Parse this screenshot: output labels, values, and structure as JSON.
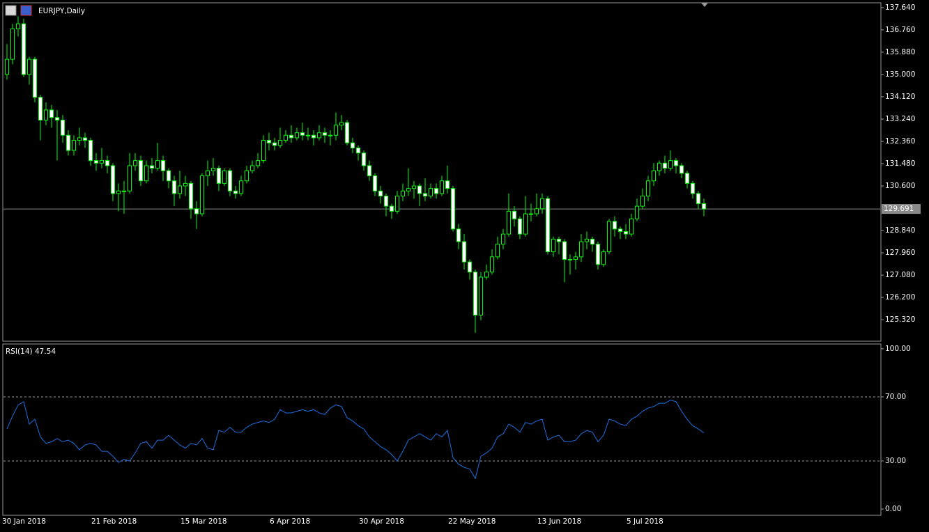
{
  "chart_data": [
    {
      "type": "candlestick",
      "title": "EURJPY,Daily",
      "categories": [
        "30 Jan 2018",
        null,
        null,
        null,
        null,
        null,
        null,
        null,
        null,
        null,
        null,
        null,
        null,
        null,
        null,
        null,
        "21 Feb 2018",
        null,
        null,
        null,
        null,
        null,
        null,
        null,
        null,
        null,
        null,
        null,
        null,
        null,
        null,
        null,
        "15 Mar 2018",
        null,
        null,
        null,
        null,
        null,
        null,
        null,
        null,
        null,
        null,
        null,
        null,
        null,
        null,
        null,
        "6 Apr 2018",
        null,
        null,
        null,
        null,
        null,
        null,
        null,
        null,
        null,
        null,
        null,
        null,
        null,
        null,
        null,
        "30 Apr 2018",
        null,
        null,
        null,
        null,
        null,
        null,
        null,
        null,
        null,
        null,
        null,
        null,
        null,
        null,
        null,
        "22 May 2018",
        null,
        null,
        null,
        null,
        null,
        null,
        null,
        null,
        null,
        null,
        null,
        null,
        null,
        null,
        null,
        "13 Jun 2018",
        null,
        null,
        null,
        null,
        null,
        null,
        null,
        null,
        null,
        null,
        null,
        null,
        null,
        null,
        null,
        "5 Jul 2018",
        null,
        null,
        null,
        null,
        null,
        null,
        null,
        null,
        null,
        null,
        null,
        null,
        null
      ],
      "open": [
        135.0,
        135.6,
        136.8,
        137.0,
        135.0,
        135.6,
        134.1,
        133.2,
        133.6,
        133.3,
        133.2,
        132.6,
        132.0,
        132.4,
        132.5,
        132.4,
        131.6,
        131.5,
        131.6,
        131.4,
        130.3,
        130.4,
        130.4,
        131.4,
        131.6,
        130.8,
        131.4,
        131.3,
        131.6,
        131.2,
        130.8,
        130.3,
        130.6,
        130.7,
        129.7,
        129.5,
        131.0,
        131.2,
        131.3,
        130.7,
        131.2,
        130.4,
        130.3,
        130.8,
        131.2,
        131.4,
        131.6,
        132.4,
        132.3,
        132.2,
        132.4,
        132.6,
        132.5,
        132.7,
        132.6,
        132.6,
        132.5,
        132.7,
        132.6,
        132.6,
        133.0,
        133.1,
        132.3,
        132.1,
        131.9,
        131.4,
        131.0,
        130.4,
        130.2,
        129.8,
        129.6,
        130.2,
        130.4,
        130.5,
        130.6,
        130.3,
        130.2,
        130.5,
        130.3,
        130.8,
        130.5,
        128.9,
        128.4,
        127.6,
        127.2,
        125.5,
        127.0,
        127.2,
        127.8,
        128.3,
        128.7,
        129.6,
        129.3,
        128.7,
        129.5,
        129.5,
        129.7,
        130.1,
        128.0,
        128.5,
        128.4,
        127.7,
        127.7,
        127.8,
        128.4,
        128.5,
        128.3,
        127.5,
        128.0,
        129.2,
        128.9,
        128.8,
        128.7,
        129.3,
        129.8,
        130.2,
        130.8,
        131.2,
        131.5,
        131.3,
        131.6,
        131.4,
        131.1,
        130.7,
        130.3,
        129.9
      ],
      "high": [
        136.2,
        137.0,
        137.3,
        137.2,
        135.7,
        135.7,
        134.2,
        133.9,
        133.8,
        133.6,
        133.4,
        132.8,
        132.6,
        132.9,
        132.7,
        132.5,
        131.9,
        132.1,
        131.8,
        131.5,
        130.7,
        130.8,
        131.9,
        131.9,
        131.8,
        131.6,
        131.7,
        132.3,
        131.8,
        131.3,
        131.0,
        131.2,
        131.0,
        130.8,
        130.0,
        131.1,
        131.6,
        131.7,
        131.4,
        131.3,
        131.3,
        130.6,
        131.0,
        131.4,
        131.6,
        131.9,
        132.6,
        132.7,
        132.5,
        132.9,
        132.8,
        133.0,
        132.9,
        133.1,
        132.9,
        132.8,
        133.0,
        132.9,
        132.8,
        133.5,
        133.4,
        133.2,
        132.5,
        132.2,
        132.0,
        131.6,
        131.1,
        130.6,
        130.3,
        129.9,
        130.4,
        130.7,
        131.3,
        130.8,
        130.7,
        130.9,
        130.7,
        130.7,
        131.0,
        131.4,
        130.6,
        129.1,
        128.7,
        127.7,
        127.3,
        127.2,
        127.5,
        128.1,
        128.6,
        128.9,
        130.3,
        129.8,
        129.4,
        130.2,
        129.9,
        130.3,
        130.3,
        130.2,
        128.6,
        128.6,
        128.5,
        127.9,
        128.0,
        128.7,
        128.8,
        128.6,
        128.4,
        128.1,
        129.3,
        129.4,
        129.0,
        129.1,
        129.5,
        130.1,
        130.5,
        131.0,
        131.5,
        131.6,
        131.8,
        132.0,
        131.7,
        131.5,
        131.2,
        130.8,
        130.4,
        130.1
      ],
      "low": [
        134.8,
        135.4,
        136.5,
        134.9,
        134.6,
        133.9,
        132.4,
        133.0,
        132.9,
        131.6,
        132.3,
        131.8,
        131.8,
        132.2,
        132.1,
        131.4,
        131.2,
        131.3,
        131.1,
        130.0,
        129.6,
        129.5,
        130.3,
        131.2,
        130.6,
        130.7,
        131.1,
        131.2,
        130.8,
        130.5,
        129.8,
        130.1,
        130.2,
        129.3,
        128.9,
        129.4,
        130.6,
        131.0,
        130.4,
        130.6,
        130.2,
        130.1,
        130.2,
        130.7,
        131.1,
        131.3,
        131.5,
        132.0,
        132.0,
        132.1,
        132.3,
        132.3,
        132.4,
        132.4,
        132.4,
        132.2,
        132.4,
        132.3,
        132.2,
        132.4,
        132.8,
        132.2,
        131.9,
        131.6,
        131.2,
        130.8,
        130.2,
        129.9,
        129.4,
        129.3,
        129.5,
        130.0,
        130.2,
        130.1,
        129.8,
        130.0,
        130.1,
        130.1,
        130.2,
        130.3,
        128.8,
        128.1,
        127.3,
        126.9,
        124.8,
        125.3,
        126.9,
        127.1,
        127.7,
        128.1,
        128.6,
        129.0,
        128.5,
        128.6,
        129.2,
        129.4,
        129.5,
        127.9,
        127.8,
        127.9,
        126.8,
        127.1,
        127.3,
        127.6,
        128.1,
        128.0,
        127.3,
        127.4,
        127.9,
        128.6,
        128.5,
        128.5,
        128.6,
        129.2,
        129.7,
        130.0,
        130.6,
        131.0,
        131.1,
        131.2,
        131.1,
        130.9,
        130.5,
        130.1,
        129.7,
        129.4
      ],
      "close": [
        135.6,
        136.8,
        137.0,
        135.0,
        135.6,
        134.1,
        133.2,
        133.6,
        133.3,
        133.2,
        132.6,
        132.0,
        132.4,
        132.5,
        132.4,
        131.6,
        131.5,
        131.6,
        131.4,
        130.3,
        130.4,
        130.4,
        131.4,
        131.6,
        130.8,
        131.4,
        131.3,
        131.6,
        131.2,
        130.8,
        130.3,
        130.6,
        130.7,
        129.7,
        129.5,
        131.0,
        131.2,
        131.3,
        130.7,
        131.2,
        130.4,
        130.3,
        130.8,
        131.2,
        131.4,
        131.6,
        132.4,
        132.3,
        132.2,
        132.4,
        132.6,
        132.5,
        132.7,
        132.6,
        132.6,
        132.5,
        132.7,
        132.6,
        132.6,
        133.0,
        133.1,
        132.3,
        132.1,
        131.9,
        131.4,
        131.0,
        130.4,
        130.2,
        129.8,
        129.6,
        130.2,
        130.4,
        130.5,
        130.6,
        130.3,
        130.2,
        130.5,
        130.3,
        130.8,
        130.5,
        128.9,
        128.4,
        127.6,
        127.2,
        125.5,
        127.0,
        127.2,
        127.8,
        128.3,
        128.7,
        129.6,
        129.3,
        128.7,
        129.5,
        129.5,
        129.7,
        130.1,
        128.0,
        128.5,
        128.4,
        127.7,
        127.7,
        127.8,
        128.4,
        128.5,
        128.3,
        127.5,
        128.0,
        129.2,
        128.9,
        128.8,
        128.7,
        129.3,
        129.8,
        130.2,
        130.8,
        131.2,
        131.5,
        131.3,
        131.6,
        131.4,
        131.1,
        130.7,
        130.3,
        129.9,
        129.691
      ],
      "up_color": "#000000",
      "down_color": "#ffffff",
      "wick_color": "#00ff00",
      "last_price_line": true,
      "ylim": [
        124.47,
        137.83
      ],
      "yticks": [
        {
          "value": 137.64,
          "label": "137.640"
        },
        {
          "value": 136.76,
          "label": "136.760"
        },
        {
          "value": 135.88,
          "label": "135.880"
        },
        {
          "value": 135.0,
          "label": "135.000"
        },
        {
          "value": 134.12,
          "label": "134.120"
        },
        {
          "value": 133.24,
          "label": "133.240"
        },
        {
          "value": 132.36,
          "label": "132.360"
        },
        {
          "value": 131.48,
          "label": "131.480"
        },
        {
          "value": 130.6,
          "label": "130.600"
        },
        {
          "value": 128.84,
          "label": "128.840"
        },
        {
          "value": 127.96,
          "label": "127.960"
        },
        {
          "value": 127.08,
          "label": "127.080"
        },
        {
          "value": 126.2,
          "label": "126.200"
        },
        {
          "value": 125.32,
          "label": "125.320"
        }
      ]
    },
    {
      "type": "line",
      "title": "RSI(14) 47.54",
      "color": "#1e6fe0",
      "values": [
        50,
        58,
        65,
        67,
        53,
        56,
        45,
        41,
        42,
        44,
        42,
        43,
        41,
        37,
        40,
        41,
        40,
        36,
        36,
        33,
        29,
        31,
        30,
        35,
        41,
        42,
        38,
        43,
        43,
        46,
        43,
        40,
        38,
        41,
        40,
        44,
        38,
        37,
        49,
        48,
        51,
        48,
        48,
        51,
        53,
        54,
        55,
        54,
        56,
        62,
        60,
        60,
        61,
        62,
        61,
        62,
        60,
        59,
        63,
        65,
        64,
        57,
        55,
        52,
        50,
        45,
        42,
        39,
        37,
        34,
        30,
        36,
        43,
        45,
        47,
        45,
        43,
        47,
        45,
        49,
        32,
        28,
        26,
        25,
        19,
        33,
        35,
        38,
        45,
        47,
        53,
        51,
        48,
        54,
        53,
        55,
        56,
        43,
        45,
        46,
        42,
        42,
        43,
        47,
        49,
        48,
        42,
        46,
        56,
        55,
        53,
        52,
        56,
        58,
        61,
        63,
        64,
        66,
        66,
        68,
        67,
        61,
        56,
        52,
        50,
        47.54
      ],
      "ylim": [
        -3.9,
        103
      ],
      "yticks": [
        {
          "value": 100,
          "label": "100.00"
        },
        {
          "value": 70,
          "label": "70.00"
        },
        {
          "value": 30,
          "label": "30.00"
        },
        {
          "value": 0,
          "label": "0.00"
        }
      ]
    }
  ]
}
